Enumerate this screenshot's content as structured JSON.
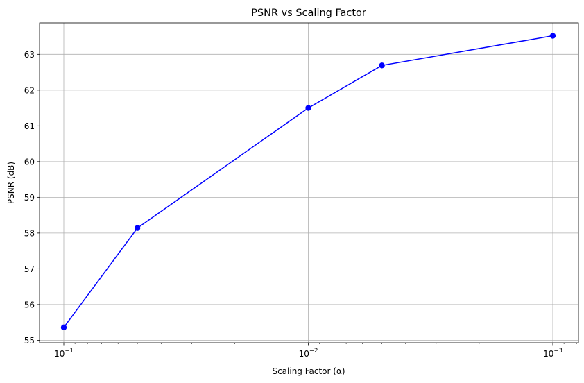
{
  "chart_data": {
    "type": "line",
    "title": "PSNR vs Scaling Factor",
    "xlabel": "Scaling Factor (α)",
    "ylabel": "PSNR (dB)",
    "xscale": "log",
    "x_axis_inverted": true,
    "grid": true,
    "x_tick_labels": [
      {
        "base": "10",
        "exp": "−1",
        "value": 0.1
      },
      {
        "base": "10",
        "exp": "−2",
        "value": 0.01
      },
      {
        "base": "10",
        "exp": "−3",
        "value": 0.001
      }
    ],
    "y_ticks": [
      "55",
      "56",
      "57",
      "58",
      "59",
      "60",
      "61",
      "62",
      "63"
    ],
    "ylim": [
      54.93,
      63.88
    ],
    "series": [
      {
        "color": "#0000ff",
        "marker": "circle",
        "x": [
          0.1,
          0.05,
          0.01,
          0.005,
          0.001
        ],
        "y": [
          55.36,
          58.14,
          61.5,
          62.69,
          63.52
        ]
      }
    ]
  }
}
